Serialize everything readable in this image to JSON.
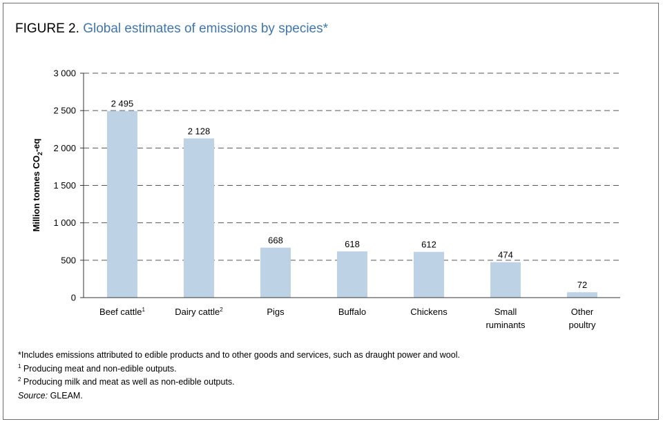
{
  "figure": {
    "label": "FIGURE 2.",
    "title": "Global estimates of emissions by species*"
  },
  "chart_data": {
    "type": "bar",
    "title": "Global estimates of emissions by species*",
    "ylabel_main": "Million tonnes CO",
    "ylabel_sub": "2",
    "ylabel_tail": "-eq",
    "xlabel": "",
    "ylim": [
      0,
      3000
    ],
    "yticks": [
      0,
      500,
      1000,
      1500,
      2000,
      2500,
      3000
    ],
    "ytick_labels": [
      "0",
      "500",
      "1 000",
      "1 500",
      "2 000",
      "2 500",
      "3 000"
    ],
    "grid": "dashed horizontal",
    "bar_color": "#bed2e6",
    "categories": [
      {
        "lines": [
          "Beef cattle"
        ],
        "sup": "1"
      },
      {
        "lines": [
          "Dairy cattle"
        ],
        "sup": "2"
      },
      {
        "lines": [
          "Pigs"
        ],
        "sup": ""
      },
      {
        "lines": [
          "Buffalo"
        ],
        "sup": ""
      },
      {
        "lines": [
          "Chickens"
        ],
        "sup": ""
      },
      {
        "lines": [
          "Small",
          "ruminants"
        ],
        "sup": ""
      },
      {
        "lines": [
          "Other",
          "poultry"
        ],
        "sup": ""
      }
    ],
    "values": [
      2495,
      2128,
      668,
      618,
      612,
      474,
      72
    ],
    "value_labels": [
      "2 495",
      "2 128",
      "668",
      "618",
      "612",
      "474",
      "72"
    ]
  },
  "notes": {
    "star": "*Includes emissions attributed to edible products and to other goods and services, such as draught power and wool.",
    "n1_sup": "1",
    "n1": " Producing meat and non-edible outputs.",
    "n2_sup": "2",
    "n2": " Producing milk and meat as well as non-edible outputs.",
    "source_label": "Source:",
    "source": " GLEAM."
  }
}
